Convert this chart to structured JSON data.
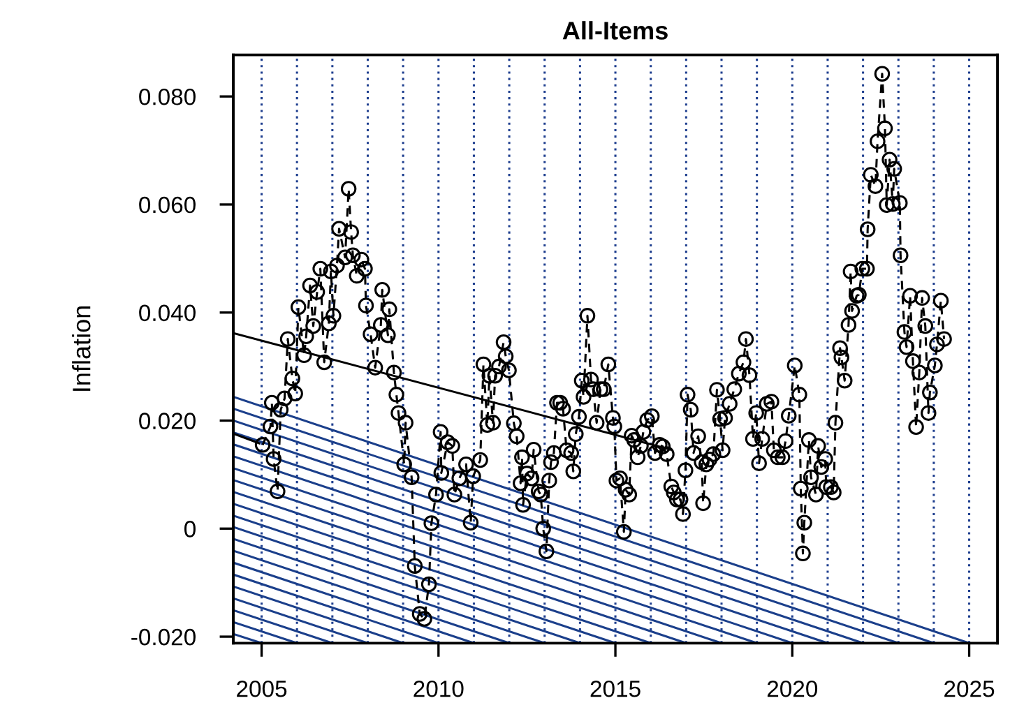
{
  "chart_data": {
    "type": "line",
    "title": "All-Items",
    "ylabel": "Inflation",
    "xlim": [
      2004.2,
      2025.8
    ],
    "xticks": [
      2005,
      2010,
      2015,
      2020,
      2025
    ],
    "ylim": [
      -0.0212,
      0.0877
    ],
    "yticks": [
      {
        "value": -0.02,
        "label": "-0.020"
      },
      0,
      {
        "value": 0.02,
        "label": "0.020"
      },
      {
        "value": 0.04,
        "label": "0.040"
      },
      {
        "value": 0.06,
        "label": "0.060"
      },
      {
        "value": 0.08,
        "label": "0.080"
      }
    ],
    "grid": false,
    "legend": false,
    "ref_lines": [
      {
        "axis": "x",
        "value": 2005,
        "color": "#1f3f8f",
        "line_style": "dotted"
      },
      {
        "axis": "x",
        "value": 2006,
        "color": "#1f3f8f",
        "line_style": "dotted"
      },
      {
        "axis": "x",
        "value": 2007,
        "color": "#1f3f8f",
        "line_style": "dotted"
      },
      {
        "axis": "x",
        "value": 2008,
        "color": "#1f3f8f",
        "line_style": "dotted"
      },
      {
        "axis": "x",
        "value": 2009,
        "color": "#1f3f8f",
        "line_style": "dotted"
      },
      {
        "axis": "x",
        "value": 2010,
        "color": "#1f3f8f",
        "line_style": "dotted"
      },
      {
        "axis": "x",
        "value": 2011,
        "color": "#1f3f8f",
        "line_style": "dotted"
      },
      {
        "axis": "x",
        "value": 2012,
        "color": "#1f3f8f",
        "line_style": "dotted"
      },
      {
        "axis": "x",
        "value": 2013,
        "color": "#1f3f8f",
        "line_style": "dotted"
      },
      {
        "axis": "x",
        "value": 2014,
        "color": "#1f3f8f",
        "line_style": "dotted"
      },
      {
        "axis": "x",
        "value": 2015,
        "color": "#1f3f8f",
        "line_style": "dotted"
      },
      {
        "axis": "x",
        "value": 2016,
        "color": "#1f3f8f",
        "line_style": "dotted"
      },
      {
        "axis": "x",
        "value": 2017,
        "color": "#1f3f8f",
        "line_style": "dotted"
      },
      {
        "axis": "x",
        "value": 2018,
        "color": "#1f3f8f",
        "line_style": "dotted"
      },
      {
        "axis": "x",
        "value": 2019,
        "color": "#1f3f8f",
        "line_style": "dotted"
      },
      {
        "axis": "x",
        "value": 2020,
        "color": "#1f3f8f",
        "line_style": "dotted"
      },
      {
        "axis": "x",
        "value": 2021,
        "color": "#1f3f8f",
        "line_style": "dotted"
      },
      {
        "axis": "x",
        "value": 2022,
        "color": "#1f3f8f",
        "line_style": "dotted"
      },
      {
        "axis": "x",
        "value": 2023,
        "color": "#1f3f8f",
        "line_style": "dotted"
      },
      {
        "axis": "x",
        "value": 2024,
        "color": "#1f3f8f",
        "line_style": "dotted"
      },
      {
        "axis": "x",
        "value": 2025,
        "color": "#1f3f8f",
        "line_style": "dotted"
      }
    ],
    "series": [
      {
        "color": "#1b3f8b",
        "marker": "none",
        "line_style": "solid",
        "x": [
          2004.2,
          2005
        ],
        "values": [
          -0.0195,
          -0.0212
        ]
      },
      {
        "color": "#1b3f8b",
        "marker": "none",
        "line_style": "solid",
        "x": [
          2004.2,
          2006
        ],
        "values": [
          -0.0173,
          -0.0212
        ]
      },
      {
        "color": "#1b3f8b",
        "marker": "none",
        "line_style": "solid",
        "x": [
          2004.2,
          2007
        ],
        "values": [
          -0.0151,
          -0.0212
        ]
      },
      {
        "color": "#1b3f8b",
        "marker": "none",
        "line_style": "solid",
        "x": [
          2004.2,
          2008
        ],
        "values": [
          -0.0129,
          -0.0212
        ]
      },
      {
        "color": "#1b3f8b",
        "marker": "none",
        "line_style": "solid",
        "x": [
          2004.2,
          2009
        ],
        "values": [
          -0.0107,
          -0.0212
        ]
      },
      {
        "color": "#1b3f8b",
        "marker": "none",
        "line_style": "solid",
        "x": [
          2004.2,
          2010
        ],
        "values": [
          -0.0085,
          -0.0212
        ]
      },
      {
        "color": "#1b3f8b",
        "marker": "none",
        "line_style": "solid",
        "x": [
          2004.2,
          2011
        ],
        "values": [
          -0.0063,
          -0.0212
        ]
      },
      {
        "color": "#1b3f8b",
        "marker": "none",
        "line_style": "solid",
        "x": [
          2004.2,
          2012
        ],
        "values": [
          -0.0041,
          -0.0212
        ]
      },
      {
        "color": "#1b3f8b",
        "marker": "none",
        "line_style": "solid",
        "x": [
          2004.2,
          2013
        ],
        "values": [
          -0.0019,
          -0.0212
        ]
      },
      {
        "color": "#1b3f8b",
        "marker": "none",
        "line_style": "solid",
        "x": [
          2004.2,
          2014
        ],
        "values": [
          0.0003,
          -0.0212
        ]
      },
      {
        "color": "#1b3f8b",
        "marker": "none",
        "line_style": "solid",
        "x": [
          2004.2,
          2015
        ],
        "values": [
          0.0024,
          -0.0212
        ]
      },
      {
        "color": "#1b3f8b",
        "marker": "none",
        "line_style": "solid",
        "x": [
          2004.2,
          2016
        ],
        "values": [
          0.0046,
          -0.0212
        ]
      },
      {
        "color": "#1b3f8b",
        "marker": "none",
        "line_style": "solid",
        "x": [
          2004.2,
          2017
        ],
        "values": [
          0.0068,
          -0.0212
        ]
      },
      {
        "color": "#1b3f8b",
        "marker": "none",
        "line_style": "solid",
        "x": [
          2004.2,
          2018
        ],
        "values": [
          0.009,
          -0.0212
        ]
      },
      {
        "color": "#1b3f8b",
        "marker": "none",
        "line_style": "solid",
        "x": [
          2004.2,
          2019
        ],
        "values": [
          0.0112,
          -0.0212
        ]
      },
      {
        "color": "#1b3f8b",
        "marker": "none",
        "line_style": "solid",
        "x": [
          2004.2,
          2020
        ],
        "values": [
          0.0134,
          -0.0212
        ]
      },
      {
        "color": "#1b3f8b",
        "marker": "none",
        "line_style": "solid",
        "x": [
          2004.2,
          2021
        ],
        "values": [
          0.0156,
          -0.0212
        ]
      },
      {
        "color": "#1b3f8b",
        "marker": "none",
        "line_style": "solid",
        "x": [
          2004.2,
          2022
        ],
        "values": [
          0.0178,
          -0.0212
        ]
      },
      {
        "color": "#1b3f8b",
        "marker": "none",
        "line_style": "solid",
        "x": [
          2004.2,
          2023
        ],
        "values": [
          0.02,
          -0.0212
        ]
      },
      {
        "color": "#1b3f8b",
        "marker": "none",
        "line_style": "solid",
        "x": [
          2004.2,
          2024
        ],
        "values": [
          0.0222,
          -0.0212
        ]
      },
      {
        "color": "#1b3f8b",
        "marker": "none",
        "line_style": "solid",
        "x": [
          2004.2,
          2025
        ],
        "values": [
          0.0244,
          -0.0212
        ]
      },
      {
        "color": "#000000",
        "marker": "none",
        "line_style": "solid",
        "x": [
          2004.2,
          2016.58
        ],
        "values": [
          0.0362,
          0.0146
        ]
      },
      {
        "color": "#000000",
        "marker": "none",
        "line_style": "solid",
        "x": [
          2004.2,
          2004.93
        ],
        "values": [
          0.0176,
          0.0158
        ]
      },
      {
        "color": "#000000",
        "marker": "circle",
        "line_style": "dashed",
        "x": [
          2005.03,
          2005.25,
          2005.29,
          2005.34,
          2005.45,
          2005.54,
          2005.65,
          2005.74,
          2005.87,
          2005.95,
          2006.04,
          2006.2,
          2006.26,
          2006.37,
          2006.46,
          2006.57,
          2006.66,
          2006.77,
          2006.9,
          2006.96,
          2007.03,
          2007.13,
          2007.19,
          2007.36,
          2007.46,
          2007.53,
          2007.58,
          2007.69,
          2007.82,
          2007.92,
          2007.95,
          2008.08,
          2008.21,
          2008.37,
          2008.41,
          2008.57,
          2008.61,
          2008.74,
          2008.81,
          2008.87,
          2009.03,
          2009.07,
          2009.24,
          2009.33,
          2009.47,
          2009.6,
          2009.73,
          2009.8,
          2009.93,
          2010.06,
          2010.08,
          2010.26,
          2010.39,
          2010.45,
          2010.59,
          2010.78,
          2010.91,
          2010.98,
          2011.18,
          2011.27,
          2011.38,
          2011.44,
          2011.54,
          2011.6,
          2011.71,
          2011.84,
          2011.9,
          2011.99,
          2012.13,
          2012.21,
          2012.32,
          2012.36,
          2012.39,
          2012.5,
          2012.63,
          2012.69,
          2012.83,
          2012.89,
          2012.96,
          2013.05,
          2013.13,
          2013.18,
          2013.26,
          2013.35,
          2013.44,
          2013.52,
          2013.62,
          2013.75,
          2013.81,
          2013.88,
          2013.97,
          2014.05,
          2014.1,
          2014.21,
          2014.31,
          2014.37,
          2014.47,
          2014.58,
          2014.67,
          2014.8,
          2014.93,
          2014.97,
          2015.03,
          2015.13,
          2015.24,
          2015.29,
          2015.39,
          2015.46,
          2015.53,
          2015.63,
          2015.72,
          2015.79,
          2015.9,
          2016.03,
          2016.12,
          2016.25,
          2016.34,
          2016.45,
          2016.58,
          2016.65,
          2016.74,
          2016.84,
          2016.91,
          2016.98,
          2017.04,
          2017.13,
          2017.21,
          2017.34,
          2017.44,
          2017.48,
          2017.57,
          2017.66,
          2017.77,
          2017.87,
          2017.96,
          2018.03,
          2018.1,
          2018.23,
          2018.36,
          2018.49,
          2018.62,
          2018.69,
          2018.79,
          2018.89,
          2018.98,
          2019.06,
          2019.15,
          2019.28,
          2019.41,
          2019.48,
          2019.59,
          2019.72,
          2019.81,
          2019.9,
          2020.07,
          2020.2,
          2020.24,
          2020.3,
          2020.34,
          2020.47,
          2020.53,
          2020.67,
          2020.73,
          2020.82,
          2020.93,
          2020.96,
          2021.09,
          2021.17,
          2021.22,
          2021.35,
          2021.39,
          2021.48,
          2021.59,
          2021.65,
          2021.69,
          2021.82,
          2021.88,
          2021.98,
          2022.11,
          2022.13,
          2022.22,
          2022.35,
          2022.41,
          2022.54,
          2022.62,
          2022.67,
          2022.75,
          2022.84,
          2022.88,
          2023.04,
          2023.06,
          2023.17,
          2023.23,
          2023.33,
          2023.41,
          2023.5,
          2023.59,
          2023.67,
          2023.76,
          2023.85,
          2023.89,
          2024.03,
          2024.09,
          2024.2,
          2024.29
        ],
        "values": [
          0.0155,
          0.0189,
          0.0233,
          0.0129,
          0.0069,
          0.022,
          0.0241,
          0.0351,
          0.0278,
          0.025,
          0.041,
          0.0321,
          0.0356,
          0.045,
          0.0375,
          0.0438,
          0.0481,
          0.0308,
          0.038,
          0.0476,
          0.0394,
          0.0487,
          0.0555,
          0.0502,
          0.0629,
          0.0549,
          0.0506,
          0.0468,
          0.0498,
          0.0481,
          0.0413,
          0.036,
          0.0298,
          0.0377,
          0.0442,
          0.0358,
          0.0406,
          0.0289,
          0.0248,
          0.0214,
          0.0119,
          0.0196,
          0.0095,
          -0.0069,
          -0.0158,
          -0.0167,
          -0.0103,
          0.001,
          0.0063,
          0.0179,
          0.0103,
          0.016,
          0.0153,
          0.0063,
          0.0093,
          0.0119,
          0.0011,
          0.0097,
          0.0127,
          0.0304,
          0.0192,
          0.0283,
          0.0196,
          0.0283,
          0.03,
          0.0345,
          0.0319,
          0.0293,
          0.0195,
          0.0171,
          0.0084,
          0.0132,
          0.0044,
          0.0102,
          0.0093,
          0.0146,
          0.0069,
          0.0063,
          0.0,
          -0.0042,
          0.0089,
          0.0123,
          0.014,
          0.0233,
          0.0233,
          0.0222,
          0.0145,
          0.014,
          0.0106,
          0.0175,
          0.0207,
          0.0274,
          0.0244,
          0.0394,
          0.0276,
          0.0258,
          0.0196,
          0.0258,
          0.0258,
          0.0304,
          0.0205,
          0.0189,
          0.0089,
          0.0093,
          -0.0006,
          0.0072,
          0.0063,
          0.0172,
          0.0164,
          0.0132,
          0.0153,
          0.0179,
          0.0201,
          0.0208,
          0.014,
          0.0155,
          0.0152,
          0.0138,
          0.0078,
          0.0067,
          0.0054,
          0.0054,
          0.0027,
          0.0108,
          0.0248,
          0.022,
          0.014,
          0.0171,
          0.0123,
          0.0047,
          0.0119,
          0.0128,
          0.0138,
          0.0257,
          0.0203,
          0.0145,
          0.0205,
          0.0231,
          0.0258,
          0.0287,
          0.0308,
          0.0351,
          0.0284,
          0.0166,
          0.0214,
          0.0121,
          0.0166,
          0.0231,
          0.0235,
          0.0145,
          0.0132,
          0.0132,
          0.0162,
          0.0209,
          0.0302,
          0.0248,
          0.0074,
          -0.0046,
          0.0011,
          0.0164,
          0.0095,
          0.0063,
          0.0153,
          0.0114,
          0.0129,
          0.0077,
          0.0077,
          0.0067,
          0.0196,
          0.0334,
          0.0317,
          0.0274,
          0.0377,
          0.0476,
          0.0403,
          0.0431,
          0.0433,
          0.0481,
          0.0481,
          0.0554,
          0.0655,
          0.0634,
          0.0717,
          0.0842,
          0.0741,
          0.0599,
          0.0683,
          0.0601,
          0.0666,
          0.0603,
          0.0506,
          0.0364,
          0.0336,
          0.0431,
          0.031,
          0.0188,
          0.0289,
          0.0427,
          0.0375,
          0.0214,
          0.0252,
          0.0302,
          0.0341,
          0.0422,
          0.0351
        ]
      }
    ]
  }
}
